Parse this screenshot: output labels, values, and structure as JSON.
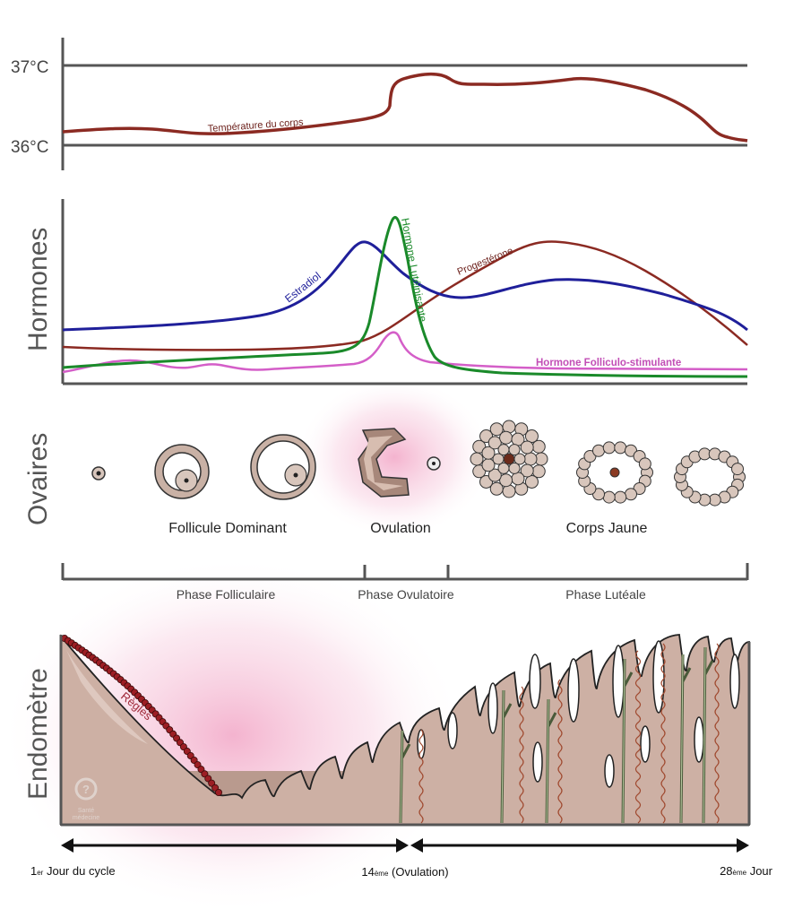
{
  "temperature": {
    "tick_high": "37°C",
    "tick_low": "36°C",
    "curve_label": "Température du corps",
    "color": "#8b2a22"
  },
  "hormones": {
    "section_label": "Hormones",
    "estradiol": {
      "label": "Estradiol",
      "color": "#1f1f9a"
    },
    "lh": {
      "label": "Hormone Lutéinisante",
      "color": "#1a8a2a"
    },
    "progesterone": {
      "label": "Progestérone",
      "color": "#8b2a22"
    },
    "fsh": {
      "label": "Hormone Folliculo-stimulante",
      "color": "#d45ec8"
    }
  },
  "ovaries": {
    "section_label": "Ovaires",
    "stages": [
      "Follicule Dominant",
      "Ovulation",
      "Corps Jaune"
    ]
  },
  "phases": [
    "Phase Folliculaire",
    "Phase Ovulatoire",
    "Phase Lutéale"
  ],
  "endometrium": {
    "section_label": "Endomètre",
    "menses_label": "Règles",
    "logo_text": "Santé médecine"
  },
  "timeline": {
    "start_label_num": "1",
    "start_label_sup": "er",
    "start_label_rest": " Jour du cycle",
    "mid_label_num": "14",
    "mid_label_sup": "ème",
    "mid_label_rest": " (Ovulation)",
    "end_label_num": "28",
    "end_label_sup": "ème",
    "end_label_rest": " Jour"
  }
}
